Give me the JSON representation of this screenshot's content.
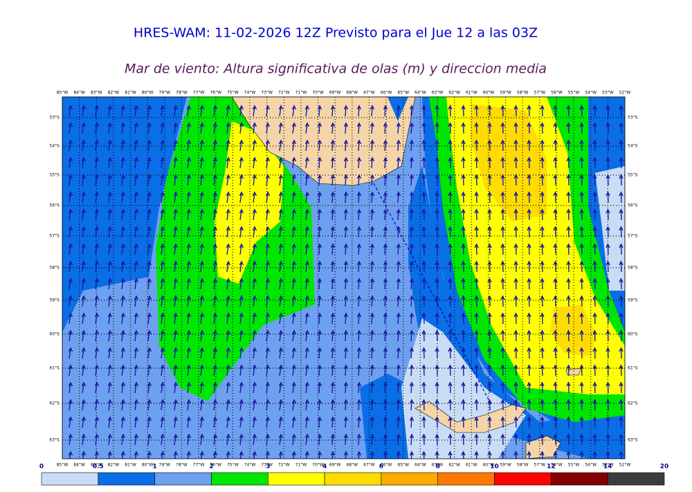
{
  "header": {
    "title": "HRES-WAM: 11-02-2026 12Z Previsto para el Jue 12 a las 03Z",
    "subtitle": "Mar de viento: Altura significativa de olas (m) y direccion media"
  },
  "map": {
    "longitudes": [
      "85°W",
      "84°W",
      "83°W",
      "82°W",
      "81°W",
      "80°W",
      "79°W",
      "78°W",
      "77°W",
      "76°W",
      "75°W",
      "74°W",
      "73°W",
      "72°W",
      "71°W",
      "70°W",
      "69°W",
      "68°W",
      "67°W",
      "66°W",
      "65°W",
      "64°W",
      "63°W",
      "62°W",
      "61°W",
      "60°W",
      "59°W",
      "58°W",
      "57°W",
      "56°W",
      "55°W",
      "54°W",
      "53°W",
      "52°W"
    ],
    "latitudes": [
      "53°S",
      "54°S",
      "55°S",
      "56°S",
      "57°S",
      "58°S",
      "59°S",
      "60°S",
      "61°S",
      "62°S",
      "63°S"
    ]
  },
  "colorbar": {
    "levels": [
      0,
      0.5,
      1,
      2,
      3,
      4,
      6,
      8,
      10,
      12,
      14,
      20
    ],
    "colors": [
      "#c8dcf5",
      "#0a6ee6",
      "#6ea0f0",
      "#00e600",
      "#ffff00",
      "#ffdc00",
      "#ffaa00",
      "#ff7800",
      "#ff0000",
      "#820000",
      "#3c3c3c"
    ]
  }
}
